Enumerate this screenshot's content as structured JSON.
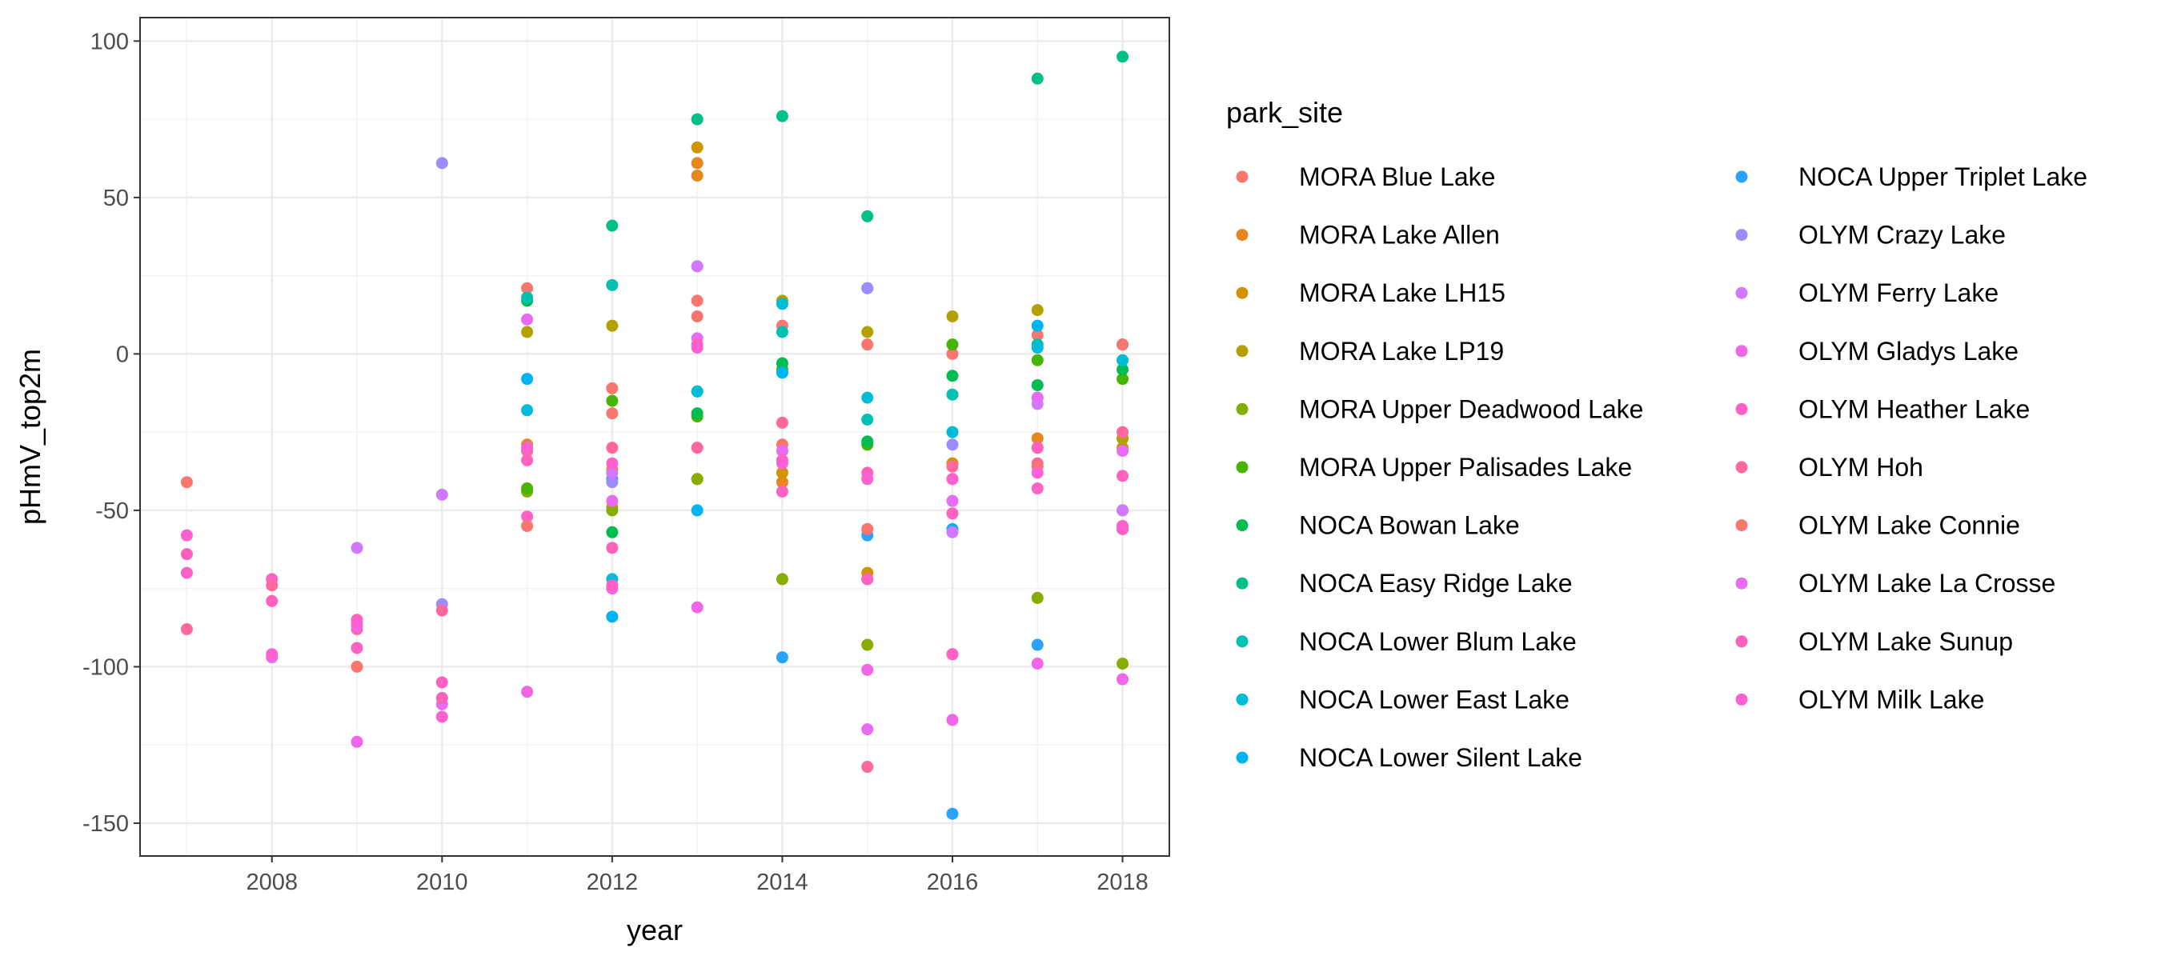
{
  "chart_data": {
    "type": "scatter",
    "xlabel": "year",
    "ylabel": "pHmV_top2m",
    "xlim": [
      2006.45,
      2018.55
    ],
    "ylim": [
      -160.5,
      107.5
    ],
    "x_ticks": [
      2008,
      2010,
      2012,
      2014,
      2016,
      2018
    ],
    "y_ticks": [
      -150,
      -100,
      -50,
      0,
      50,
      100
    ],
    "y_tick_labels": [
      "-150",
      "-100",
      "-50",
      "0",
      "50",
      "100"
    ],
    "grid": true,
    "legend": {
      "title": "park_site",
      "position": "right",
      "columns": 2
    },
    "series": [
      {
        "name": "MORA Blue Lake",
        "color": "#F8766D",
        "points": [
          [
            2011,
            21
          ],
          [
            2012,
            -11
          ],
          [
            2013,
            17
          ],
          [
            2014,
            9
          ],
          [
            2015,
            3
          ],
          [
            2016,
            0
          ],
          [
            2017,
            6
          ],
          [
            2018,
            -56
          ]
        ]
      },
      {
        "name": "MORA Lake Allen",
        "color": "#E7851E",
        "points": [
          [
            2011,
            -29
          ],
          [
            2012,
            -37
          ],
          [
            2013,
            57
          ],
          [
            2013,
            61
          ],
          [
            2014,
            -41
          ],
          [
            2015,
            -72
          ],
          [
            2016,
            -35
          ],
          [
            2017,
            -27
          ],
          [
            2018,
            -27
          ]
        ]
      },
      {
        "name": "MORA Lake LH15",
        "color": "#D09400",
        "points": [
          [
            2011,
            -31
          ],
          [
            2012,
            -49
          ],
          [
            2013,
            66
          ],
          [
            2014,
            -38
          ],
          [
            2015,
            -70
          ],
          [
            2016,
            -35
          ],
          [
            2017,
            -30
          ],
          [
            2018,
            -30
          ]
        ]
      },
      {
        "name": "MORA Lake LP19",
        "color": "#B2A100",
        "points": [
          [
            2011,
            7
          ],
          [
            2012,
            9
          ],
          [
            2013,
            -40
          ],
          [
            2014,
            17
          ],
          [
            2015,
            7
          ],
          [
            2016,
            12
          ],
          [
            2017,
            14
          ],
          [
            2018,
            -27
          ]
        ]
      },
      {
        "name": "MORA Upper Deadwood Lake",
        "color": "#89AC00",
        "points": [
          [
            2011,
            -44
          ],
          [
            2012,
            -50
          ],
          [
            2013,
            -40
          ],
          [
            2014,
            -72
          ],
          [
            2015,
            -93
          ],
          [
            2016,
            -96
          ],
          [
            2017,
            -78
          ],
          [
            2018,
            -99
          ]
        ]
      },
      {
        "name": "MORA Upper Palisades Lake",
        "color": "#45B500",
        "points": [
          [
            2011,
            -43
          ],
          [
            2012,
            -15
          ],
          [
            2013,
            -20
          ],
          [
            2014,
            -5
          ],
          [
            2015,
            -29
          ],
          [
            2016,
            3
          ],
          [
            2017,
            -2
          ],
          [
            2018,
            -8
          ]
        ]
      },
      {
        "name": "NOCA Bowan Lake",
        "color": "#00BC51",
        "points": [
          [
            2011,
            17
          ],
          [
            2012,
            -57
          ],
          [
            2013,
            -19
          ],
          [
            2014,
            -3
          ],
          [
            2015,
            -28
          ],
          [
            2016,
            -7
          ],
          [
            2017,
            -10
          ],
          [
            2018,
            -5
          ]
        ]
      },
      {
        "name": "NOCA Easy Ridge Lake",
        "color": "#00C087",
        "points": [
          [
            2012,
            41
          ],
          [
            2013,
            75
          ],
          [
            2014,
            76
          ],
          [
            2015,
            44
          ],
          [
            2017,
            88
          ],
          [
            2018,
            95
          ]
        ]
      },
      {
        "name": "NOCA Lower Blum Lake",
        "color": "#00C0B2",
        "points": [
          [
            2011,
            18
          ],
          [
            2012,
            22
          ],
          [
            2013,
            -12
          ],
          [
            2014,
            7
          ],
          [
            2015,
            -21
          ],
          [
            2016,
            -13
          ],
          [
            2017,
            3
          ],
          [
            2018,
            3
          ]
        ]
      },
      {
        "name": "NOCA Lower East Lake",
        "color": "#00BCD6",
        "points": [
          [
            2011,
            -18
          ],
          [
            2012,
            -72
          ],
          [
            2013,
            -12
          ],
          [
            2014,
            16
          ],
          [
            2015,
            -14
          ],
          [
            2016,
            -25
          ],
          [
            2017,
            2
          ],
          [
            2018,
            -2
          ]
        ]
      },
      {
        "name": "NOCA Lower Silent Lake",
        "color": "#00B3F2",
        "points": [
          [
            2011,
            -8
          ],
          [
            2012,
            -84
          ],
          [
            2013,
            -50
          ],
          [
            2014,
            -6
          ],
          [
            2015,
            21
          ],
          [
            2016,
            -56
          ],
          [
            2017,
            9
          ],
          [
            2018,
            -50
          ]
        ]
      },
      {
        "name": "NOCA Upper Triplet Lake",
        "color": "#29A3FF",
        "points": [
          [
            2012,
            -40
          ],
          [
            2014,
            -97
          ],
          [
            2015,
            -58
          ],
          [
            2016,
            -147
          ],
          [
            2017,
            -93
          ]
        ]
      },
      {
        "name": "OLYM Crazy Lake",
        "color": "#9C8DFF",
        "points": [
          [
            2010,
            61
          ],
          [
            2010,
            -80
          ],
          [
            2012,
            -41
          ],
          [
            2013,
            28
          ],
          [
            2015,
            21
          ],
          [
            2016,
            -29
          ],
          [
            2017,
            -14
          ]
        ]
      },
      {
        "name": "OLYM Ferry Lake",
        "color": "#D277FF",
        "points": [
          [
            2009,
            -62
          ],
          [
            2010,
            -45
          ],
          [
            2012,
            -38
          ],
          [
            2013,
            28
          ],
          [
            2016,
            -57
          ],
          [
            2017,
            -16
          ],
          [
            2018,
            -50
          ]
        ]
      },
      {
        "name": "OLYM Gladys Lake",
        "color": "#F166E8",
        "points": [
          [
            2009,
            -124
          ],
          [
            2011,
            -108
          ],
          [
            2012,
            -75
          ],
          [
            2013,
            -81
          ],
          [
            2015,
            -101
          ],
          [
            2016,
            -117
          ],
          [
            2017,
            -99
          ],
          [
            2018,
            -104
          ]
        ]
      },
      {
        "name": "OLYM Heather Lake",
        "color": "#FF61C7",
        "points": [
          [
            2007,
            -70
          ],
          [
            2008,
            -72
          ],
          [
            2009,
            -94
          ],
          [
            2010,
            -105
          ],
          [
            2011,
            -52
          ],
          [
            2012,
            -74
          ],
          [
            2014,
            -44
          ],
          [
            2015,
            -72
          ],
          [
            2016,
            -96
          ],
          [
            2017,
            -43
          ],
          [
            2018,
            -56
          ]
        ]
      },
      {
        "name": "OLYM Hoh",
        "color": "#FF689E",
        "points": [
          [
            2007,
            -88
          ],
          [
            2008,
            -74
          ],
          [
            2009,
            -88
          ],
          [
            2010,
            -82
          ],
          [
            2011,
            -31
          ],
          [
            2012,
            -30
          ],
          [
            2013,
            -30
          ],
          [
            2014,
            -22
          ],
          [
            2015,
            -132
          ],
          [
            2016,
            -36
          ],
          [
            2017,
            -35
          ],
          [
            2018,
            -25
          ]
        ]
      },
      {
        "name": "OLYM Lake Connie",
        "color": "#F8766D",
        "points": [
          [
            2007,
            -41
          ],
          [
            2009,
            -100
          ],
          [
            2010,
            -110
          ],
          [
            2011,
            -55
          ],
          [
            2012,
            -19
          ],
          [
            2013,
            12
          ],
          [
            2014,
            -29
          ],
          [
            2015,
            -56
          ],
          [
            2016,
            -40
          ],
          [
            2017,
            -36
          ],
          [
            2018,
            3
          ]
        ]
      },
      {
        "name": "OLYM Lake La Crosse",
        "color": "#E76BF3",
        "points": [
          [
            2008,
            -97
          ],
          [
            2009,
            -87
          ],
          [
            2010,
            -112
          ],
          [
            2011,
            11
          ],
          [
            2012,
            -47
          ],
          [
            2013,
            5
          ],
          [
            2014,
            -31
          ],
          [
            2015,
            -120
          ],
          [
            2016,
            -47
          ],
          [
            2017,
            -14
          ],
          [
            2018,
            -31
          ]
        ]
      },
      {
        "name": "OLYM Lake Sunup",
        "color": "#FF62BC",
        "points": [
          [
            2007,
            -64
          ],
          [
            2008,
            -79
          ],
          [
            2009,
            -85
          ],
          [
            2010,
            -110
          ],
          [
            2011,
            -34
          ],
          [
            2012,
            -62
          ],
          [
            2013,
            3
          ],
          [
            2014,
            -34
          ],
          [
            2015,
            -38
          ],
          [
            2016,
            -51
          ],
          [
            2017,
            -30
          ],
          [
            2018,
            -39
          ]
        ]
      },
      {
        "name": "OLYM Milk Lake",
        "color": "#FD61D1",
        "points": [
          [
            2007,
            -58
          ],
          [
            2008,
            -96
          ],
          [
            2009,
            -86
          ],
          [
            2010,
            -116
          ],
          [
            2011,
            -30
          ],
          [
            2012,
            -35
          ],
          [
            2013,
            2
          ],
          [
            2014,
            -35
          ],
          [
            2015,
            -40
          ],
          [
            2016,
            -40
          ],
          [
            2017,
            -38
          ],
          [
            2018,
            -55
          ]
        ]
      }
    ]
  }
}
